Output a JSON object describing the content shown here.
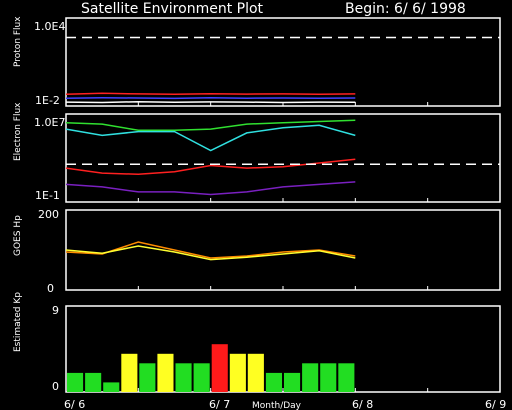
{
  "header": {
    "title": "Satellite Environment Plot",
    "begin": "Begin: 6/ 6/ 1998"
  },
  "x_axis": {
    "label": "Month/Day",
    "ticks": [
      "6/ 6",
      "6/ 7",
      "6/ 8",
      "6/ 9"
    ]
  },
  "colors": {
    "background": "#000000",
    "axes": "#ffffff",
    "red": "#ff2020",
    "blue": "#4040ff",
    "white": "#ffffff",
    "green": "#30e030",
    "cyan": "#30e0e0",
    "purple": "#7a20c0",
    "orange": "#ff8c00",
    "yellow": "#ffff30",
    "kp_green": "#22dd22",
    "kp_yellow": "#ffff22",
    "kp_red": "#ff1a1a"
  },
  "chart_data": [
    {
      "type": "line",
      "name": "proton",
      "ylabel": "Proton Flux",
      "ylim_labels": [
        "1.0E4",
        "1E-2"
      ],
      "x": [
        0,
        0.25,
        0.5,
        0.75,
        1.0,
        1.25,
        1.5,
        1.75,
        2.0
      ],
      "series": [
        {
          "color_key": "red",
          "values": [
            0.6,
            0.65,
            0.62,
            0.6,
            0.63,
            0.61,
            0.62,
            0.6,
            0.62
          ]
        },
        {
          "color_key": "blue",
          "values": [
            0.4,
            0.42,
            0.41,
            0.39,
            0.42,
            0.4,
            0.41,
            0.4,
            0.41
          ]
        },
        {
          "color_key": "white",
          "values": [
            0.2,
            0.18,
            0.22,
            0.19,
            0.21,
            0.2,
            0.18,
            0.2,
            0.19
          ]
        }
      ],
      "threshold": 3.5
    },
    {
      "type": "line",
      "name": "electron",
      "ylabel": "Electron Flux",
      "ylim_labels": [
        "1.0E7",
        "1E-1"
      ],
      "x": [
        0,
        0.25,
        0.5,
        0.75,
        1.0,
        1.25,
        1.5,
        1.75,
        2.0
      ],
      "series": [
        {
          "color_key": "green",
          "values": [
            6.3,
            6.2,
            5.7,
            5.7,
            5.8,
            6.2,
            6.3,
            6.4,
            6.5
          ]
        },
        {
          "color_key": "cyan",
          "values": [
            5.8,
            5.3,
            5.6,
            5.6,
            4.1,
            5.5,
            5.9,
            6.1,
            5.3
          ]
        },
        {
          "color_key": "red",
          "values": [
            2.7,
            2.3,
            2.2,
            2.4,
            2.9,
            2.7,
            2.8,
            3.1,
            3.4
          ]
        },
        {
          "color_key": "purple",
          "values": [
            1.4,
            1.2,
            0.8,
            0.8,
            0.6,
            0.8,
            1.2,
            1.4,
            1.6
          ]
        }
      ],
      "threshold": 3.0
    },
    {
      "type": "line",
      "name": "goes-hp",
      "ylabel": "GOES Hp",
      "ylim": [
        0,
        200
      ],
      "yticks": [
        "200",
        "0"
      ],
      "x": [
        0,
        0.25,
        0.5,
        0.75,
        1.0,
        1.25,
        1.5,
        1.75,
        2.0
      ],
      "series": [
        {
          "color_key": "orange",
          "values": [
            95,
            90,
            120,
            100,
            80,
            85,
            95,
            100,
            85
          ]
        },
        {
          "color_key": "yellow",
          "values": [
            100,
            92,
            110,
            95,
            76,
            82,
            90,
            98,
            80
          ]
        }
      ]
    },
    {
      "type": "bar",
      "name": "estimated-kp",
      "ylabel": "Estimated Kp",
      "ylim": [
        0,
        9
      ],
      "yticks": [
        "9",
        "0"
      ],
      "values": [
        2,
        2,
        1,
        4,
        3,
        4,
        3,
        3,
        5,
        4,
        4,
        2,
        2,
        3,
        3,
        3
      ],
      "bar_color_keys": [
        "kp_green",
        "kp_green",
        "kp_green",
        "kp_yellow",
        "kp_green",
        "kp_yellow",
        "kp_green",
        "kp_green",
        "kp_red",
        "kp_yellow",
        "kp_yellow",
        "kp_green",
        "kp_green",
        "kp_green",
        "kp_green",
        "kp_green"
      ]
    }
  ]
}
